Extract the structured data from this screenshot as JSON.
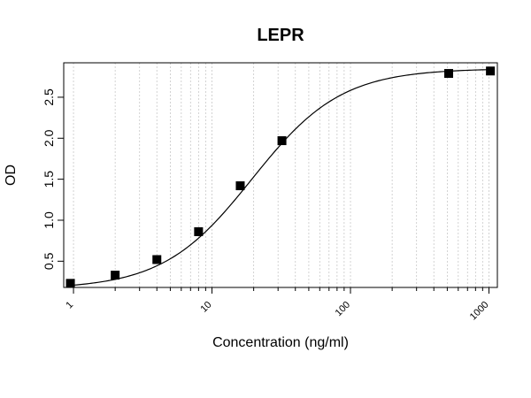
{
  "chart_data": {
    "type": "scatter",
    "title": "LEPR",
    "xlabel": "Concentration (ng/ml)",
    "ylabel": "OD",
    "x_scale": "log",
    "xlim": [
      0.85,
      1150
    ],
    "ylim": [
      0.18,
      2.92
    ],
    "x_ticks": [
      1,
      10,
      100,
      1000
    ],
    "x_tick_labels": [
      "1",
      "10",
      "100",
      "1000"
    ],
    "y_ticks": [
      0.5,
      1.0,
      1.5,
      2.0,
      2.5
    ],
    "y_tick_labels": [
      "0.5",
      "1.0",
      "1.5",
      "2.0",
      "2.5"
    ],
    "grid": "vertical dotted at log minor ticks",
    "series": [
      {
        "marker": "square",
        "color": "#000000",
        "x": [
          0.95,
          2,
          4,
          8,
          16,
          32,
          512,
          1024
        ],
        "y": [
          0.23,
          0.33,
          0.52,
          0.86,
          1.42,
          1.97,
          2.79,
          2.82
        ]
      }
    ],
    "fit_curve": {
      "type": "4PL",
      "color": "#000000",
      "bottom": 0.16,
      "top": 2.85,
      "ec50": 19.5,
      "hill": 1.35
    }
  }
}
